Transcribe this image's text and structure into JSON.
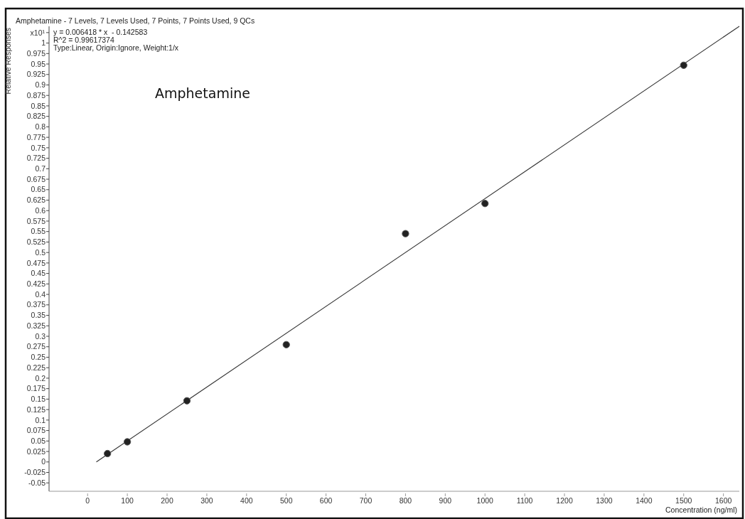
{
  "chart_data": {
    "type": "scatter",
    "title": "Amphetamine - 7 Levels, 7 Levels Used, 7 Points, 7 Points Used, 9 QCs",
    "xlabel": "Concentration (ng/ml)",
    "ylabel": "Relative Responses",
    "annotations": [
      "x10¹",
      "y = 0.006418 * x  - 0.142583",
      "R^2 = 0.99617374",
      "Type:Linear, Origin:Ignore, Weight:1/x",
      "Amphetamine"
    ],
    "xlim": [
      -97,
      1640
    ],
    "ylim": [
      -0.07,
      1.04
    ],
    "xticks": [
      0,
      100,
      200,
      300,
      400,
      500,
      600,
      700,
      800,
      900,
      1000,
      1100,
      1200,
      1300,
      1400,
      1500,
      1600
    ],
    "yticks": [
      -0.05,
      -0.025,
      0,
      0.025,
      0.05,
      0.075,
      0.1,
      0.125,
      0.15,
      0.175,
      0.2,
      0.225,
      0.25,
      0.275,
      0.3,
      0.325,
      0.35,
      0.375,
      0.4,
      0.425,
      0.45,
      0.475,
      0.5,
      0.525,
      0.55,
      0.575,
      0.6,
      0.625,
      0.65,
      0.675,
      0.7,
      0.725,
      0.75,
      0.775,
      0.8,
      0.825,
      0.85,
      0.875,
      0.9,
      0.925,
      0.95,
      0.975,
      1,
      {
        "value": 1.025,
        "label": null
      }
    ],
    "marker": "circle",
    "series": [
      {
        "color": "#222222",
        "x": [
          50,
          100,
          250,
          500,
          800,
          1000,
          1500
        ],
        "values": [
          0.02,
          0.048,
          0.146,
          0.28,
          0.545,
          0.617,
          0.947
        ]
      },
      {
        "type": "line",
        "color": "#333333",
        "marker": "none",
        "x": [
          22,
          1640
        ],
        "values": [
          0,
          1.04
        ]
      }
    ]
  }
}
